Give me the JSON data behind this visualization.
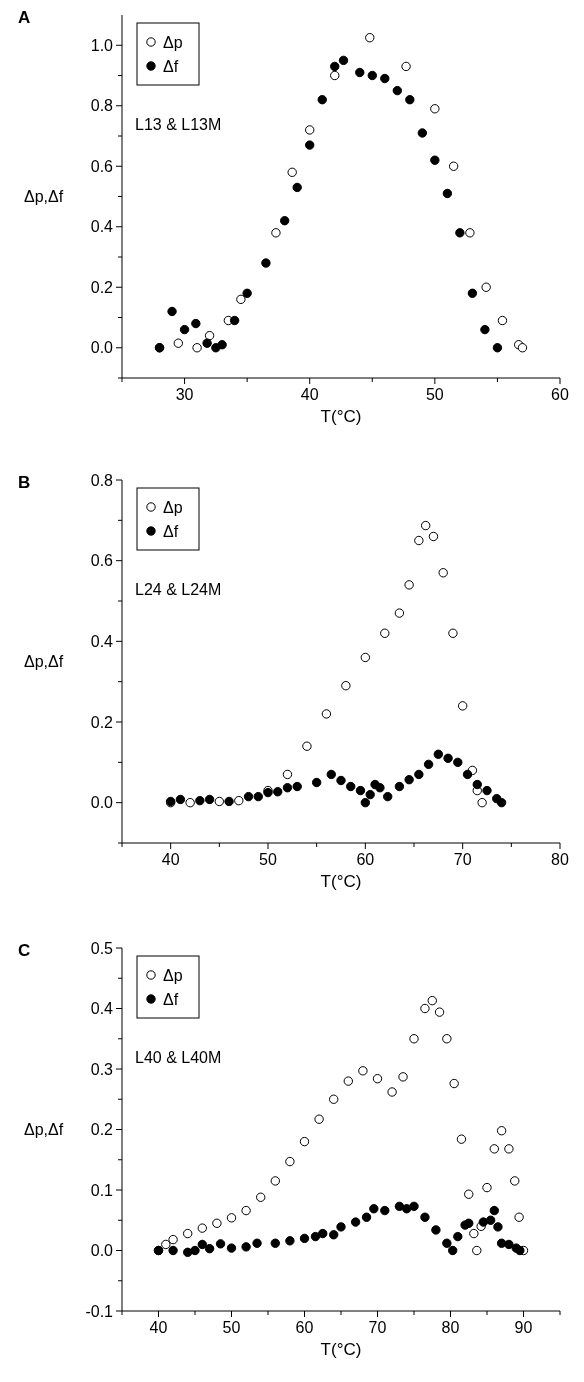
{
  "chart_data": [
    {
      "type": "scatter",
      "title": "A",
      "xlabel": "T(°C)",
      "ylabel": "Δp,Δf",
      "annotations": [
        "L13 & L13M"
      ],
      "legend": "top left",
      "marker": "circle",
      "xlim": [
        25,
        60
      ],
      "xticks": [
        {
          "value": 25,
          "label": null
        },
        30,
        {
          "value": 35,
          "label": null
        },
        40,
        {
          "value": 45,
          "label": null
        },
        50,
        {
          "value": 55,
          "label": null
        },
        60
      ],
      "ylim": [
        -0.1,
        1.1
      ],
      "yticks": [
        {
          "value": -0.1,
          "label": null
        },
        {
          "value": 0,
          "label": "0.0"
        },
        {
          "value": 0.1,
          "label": null
        },
        0.2,
        {
          "value": 0.3,
          "label": null
        },
        0.4,
        {
          "value": 0.5,
          "label": null
        },
        0.6,
        {
          "value": 0.7,
          "label": null
        },
        0.8,
        {
          "value": 0.9,
          "label": null
        },
        {
          "value": 1,
          "label": "1.0"
        }
      ],
      "series": [
        {
          "name": "Δp",
          "color": "#ffffff",
          "x": [
            28,
            29.5,
            31,
            32,
            33.5,
            34.5,
            37.3,
            38.6,
            40,
            42,
            44.8,
            47.7,
            50,
            51.5,
            52.8,
            54.1,
            55.4,
            56.7,
            57
          ],
          "values": [
            0,
            0.015,
            0,
            0.04,
            0.09,
            0.16,
            0.38,
            0.58,
            0.72,
            0.9,
            1.025,
            0.93,
            0.79,
            0.6,
            0.38,
            0.2,
            0.09,
            0.01,
            0
          ]
        },
        {
          "name": "Δf",
          "color": "#000000",
          "x": [
            28,
            29,
            30,
            30.9,
            31.8,
            32.5,
            33,
            34,
            35,
            36.5,
            38,
            39,
            40,
            41,
            42,
            42.7,
            44,
            45,
            46,
            47,
            48,
            49,
            50,
            51,
            52,
            53,
            54,
            55
          ],
          "values": [
            0,
            0.12,
            0.06,
            0.08,
            0.015,
            0,
            0.01,
            0.09,
            0.18,
            0.28,
            0.42,
            0.53,
            0.67,
            0.82,
            0.93,
            0.95,
            0.91,
            0.9,
            0.89,
            0.85,
            0.82,
            0.71,
            0.62,
            0.51,
            0.38,
            0.18,
            0.06,
            0
          ]
        }
      ]
    },
    {
      "type": "scatter",
      "title": "B",
      "xlabel": "T(°C)",
      "ylabel": "Δp,Δf",
      "annotations": [
        "L24 & L24M"
      ],
      "legend": "top left",
      "marker": "circle",
      "xlim": [
        35,
        80
      ],
      "xticks": [
        {
          "value": 35,
          "label": null
        },
        40,
        {
          "value": 45,
          "label": null
        },
        50,
        {
          "value": 55,
          "label": null
        },
        60,
        {
          "value": 65,
          "label": null
        },
        70,
        {
          "value": 75,
          "label": null
        },
        80
      ],
      "ylim": [
        -0.1,
        0.8
      ],
      "yticks": [
        {
          "value": -0.1,
          "label": null
        },
        {
          "value": 0,
          "label": "0.0"
        },
        {
          "value": 0.1,
          "label": null
        },
        0.2,
        {
          "value": 0.3,
          "label": null
        },
        0.4,
        {
          "value": 0.5,
          "label": null
        },
        0.6,
        {
          "value": 0.7,
          "label": null
        },
        0.8
      ],
      "series": [
        {
          "name": "Δp",
          "color": "#ffffff",
          "x": [
            40,
            42,
            45,
            47,
            50,
            52,
            54,
            56,
            58,
            60,
            62,
            63.5,
            64.5,
            65.5,
            66.2,
            67,
            68,
            69,
            70,
            71,
            71.5,
            72
          ],
          "values": [
            0,
            0,
            0.003,
            0.005,
            0.03,
            0.07,
            0.14,
            0.22,
            0.29,
            0.36,
            0.42,
            0.47,
            0.54,
            0.65,
            0.687,
            0.66,
            0.57,
            0.42,
            0.24,
            0.08,
            0.03,
            0
          ]
        },
        {
          "name": "Δf",
          "color": "#000000",
          "x": [
            40,
            41,
            43,
            44,
            46,
            48,
            49,
            50,
            51,
            52,
            53,
            55,
            56.5,
            57.5,
            58.5,
            59.5,
            60,
            60.5,
            61,
            61.5,
            62.3,
            63.5,
            64.5,
            65.5,
            66.5,
            67.5,
            68.5,
            69.5,
            70.5,
            71.5,
            72.5,
            73.5,
            74
          ],
          "values": [
            0.003,
            0.008,
            0.005,
            0.008,
            0.003,
            0.015,
            0.015,
            0.025,
            0.027,
            0.037,
            0.04,
            0.05,
            0.07,
            0.055,
            0.04,
            0.03,
            0,
            0.02,
            0.045,
            0.037,
            0.015,
            0.04,
            0.057,
            0.07,
            0.095,
            0.12,
            0.11,
            0.1,
            0.07,
            0.045,
            0.03,
            0.01,
            0
          ]
        }
      ]
    },
    {
      "type": "scatter",
      "title": "C",
      "xlabel": "T(°C)",
      "ylabel": "Δp,Δf",
      "annotations": [
        "L40 & L40M"
      ],
      "legend": "top left",
      "marker": "circle",
      "xlim": [
        35,
        95
      ],
      "xticks": [
        {
          "value": 35,
          "label": null
        },
        40,
        {
          "value": 45,
          "label": null
        },
        50,
        {
          "value": 55,
          "label": null
        },
        60,
        {
          "value": 65,
          "label": null
        },
        70,
        {
          "value": 75,
          "label": null
        },
        80,
        {
          "value": 85,
          "label": null
        },
        90,
        {
          "value": 95,
          "label": null
        }
      ],
      "ylim": [
        -0.1,
        0.5
      ],
      "yticks": [
        -0.1,
        {
          "value": -0.05,
          "label": null
        },
        {
          "value": 0,
          "label": "0.0"
        },
        {
          "value": 0.05,
          "label": null
        },
        0.1,
        {
          "value": 0.15,
          "label": null
        },
        0.2,
        {
          "value": 0.25,
          "label": null
        },
        0.3,
        {
          "value": 0.35,
          "label": null
        },
        0.4,
        {
          "value": 0.45,
          "label": null
        },
        0.5
      ],
      "series": [
        {
          "name": "Δp",
          "color": "#ffffff",
          "x": [
            40,
            41,
            42,
            44,
            46,
            48,
            50,
            52,
            54,
            56,
            58,
            60,
            62,
            64,
            66,
            68,
            70,
            72,
            73.5,
            75,
            76.5,
            77.5,
            78.5,
            79.5,
            80.5,
            81.5,
            82.5,
            83.2,
            83.6,
            84.2,
            85,
            86,
            87,
            88,
            88.8,
            89.4,
            90
          ],
          "values": [
            0,
            0.01,
            0.018,
            0.028,
            0.037,
            0.045,
            0.054,
            0.066,
            0.088,
            0.115,
            0.147,
            0.18,
            0.217,
            0.25,
            0.28,
            0.297,
            0.284,
            0.262,
            0.287,
            0.35,
            0.4,
            0.413,
            0.394,
            0.35,
            0.276,
            0.184,
            0.093,
            0.028,
            0,
            0.04,
            0.104,
            0.168,
            0.198,
            0.168,
            0.115,
            0.055,
            0
          ]
        },
        {
          "name": "Δf",
          "color": "#000000",
          "x": [
            40,
            42,
            44,
            45,
            46,
            47,
            48.5,
            50,
            52,
            53.5,
            56,
            58,
            60,
            61.5,
            62.5,
            64,
            65,
            67,
            68.5,
            69.5,
            71,
            73,
            74,
            75,
            76.5,
            78,
            79.5,
            80.3,
            81,
            82,
            82.5,
            84.5,
            85.5,
            86,
            86.5,
            87,
            88,
            89,
            89.5
          ],
          "values": [
            0,
            0,
            -0.003,
            0,
            0.01,
            0.003,
            0.011,
            0.004,
            0.006,
            0.012,
            0.012,
            0.016,
            0.02,
            0.023,
            0.028,
            0.026,
            0.039,
            0.047,
            0.055,
            0.069,
            0.066,
            0.073,
            0.069,
            0.073,
            0.055,
            0.034,
            0.012,
            0,
            0.023,
            0.042,
            0.045,
            0.047,
            0.05,
            0.066,
            0.039,
            0.012,
            0.01,
            0.004,
            0
          ]
        }
      ]
    }
  ]
}
